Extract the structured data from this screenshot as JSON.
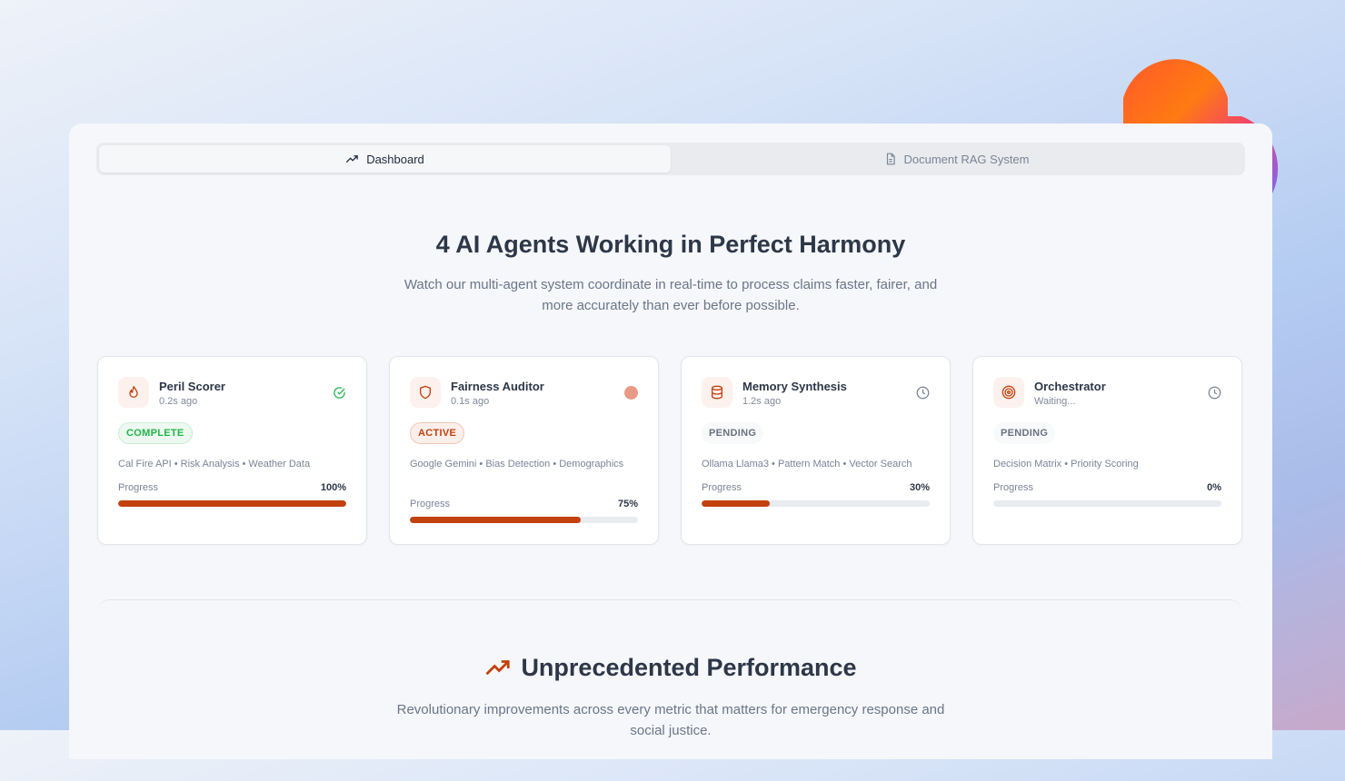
{
  "tabs": [
    {
      "label": "Dashboard",
      "icon": "trending-up-icon",
      "active": true
    },
    {
      "label": "Document RAG System",
      "icon": "document-icon",
      "active": false
    }
  ],
  "hero": {
    "title": "4 AI Agents Working in Perfect Harmony",
    "subtitle": "Watch our multi-agent system coordinate in real-time to process claims faster, fairer, and more accurately than ever before possible."
  },
  "agents": [
    {
      "name": "Peril Scorer",
      "time": "0.2s ago",
      "icon": "flame-icon",
      "status_icon": "check-circle-icon",
      "badge": "COMPLETE",
      "tags": "Cal Fire API • Risk Analysis • Weather Data",
      "progress_label": "Progress",
      "progress_text": "100%",
      "progress": 100
    },
    {
      "name": "Fairness Auditor",
      "time": "0.1s ago",
      "icon": "shield-icon",
      "status_icon": "active-dot-icon",
      "badge": "ACTIVE",
      "tags": "Google Gemini • Bias Detection • Demographics",
      "progress_label": "Progress",
      "progress_text": "75%",
      "progress": 75
    },
    {
      "name": "Memory Synthesis",
      "time": "1.2s ago",
      "icon": "database-icon",
      "status_icon": "clock-icon",
      "badge": "PENDING",
      "tags": "Ollama Llama3 • Pattern Match • Vector Search",
      "progress_label": "Progress",
      "progress_text": "30%",
      "progress": 30
    },
    {
      "name": "Orchestrator",
      "time": "Waiting...",
      "icon": "target-icon",
      "status_icon": "clock-icon",
      "badge": "PENDING",
      "tags": "Decision Matrix • Priority Scoring",
      "progress_label": "Progress",
      "progress_text": "0%",
      "progress": 0
    }
  ],
  "performance": {
    "title": "Unprecedented Performance",
    "subtitle": "Revolutionary improvements across every metric that matters for emergency response and social justice."
  },
  "colors": {
    "accent": "#c2410c",
    "complete": "#22b54a"
  }
}
